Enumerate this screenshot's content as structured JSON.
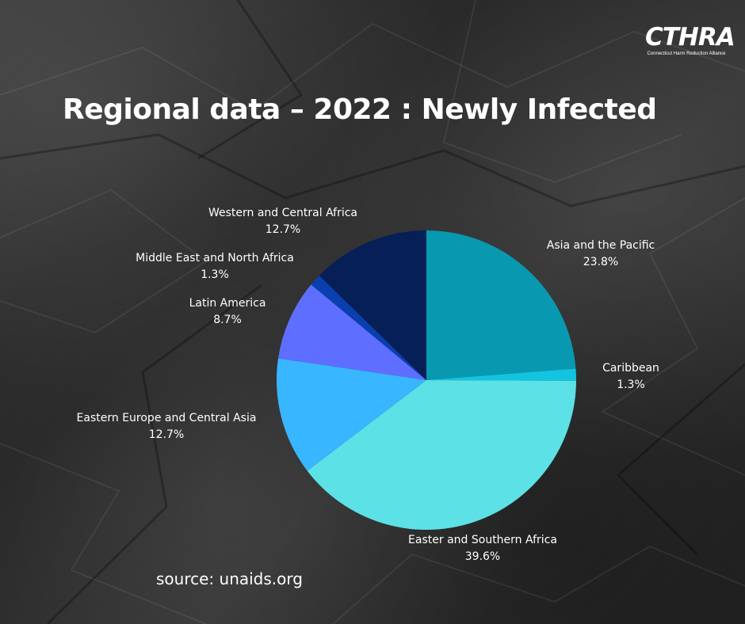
{
  "logo": {
    "word": "CTHRA",
    "tagline": "Connecticut Harm Reduction Alliance"
  },
  "title": "Regional data – 2022 : Newly Infected",
  "source": "source: unaids.org",
  "chart_data": {
    "type": "pie",
    "title": "Regional data – 2022 : Newly Infected",
    "start_angle_deg": 0,
    "direction": "clockwise",
    "slices": [
      {
        "label": "Asia and the Pacific",
        "value": 23.8,
        "value_label": "23.8%",
        "color": "#0899B1"
      },
      {
        "label": "Caribbean",
        "value": 1.3,
        "value_label": "1.3%",
        "color": "#12C4E0"
      },
      {
        "label": "Easter and Southern Africa",
        "value": 39.6,
        "value_label": "39.6%",
        "color": "#5CE1E6"
      },
      {
        "label": "Eastern Europe and Central Asia",
        "value": 12.7,
        "value_label": "12.7%",
        "color": "#38B6FF"
      },
      {
        "label": "Latin America",
        "value": 8.7,
        "value_label": "8.7%",
        "color": "#5E6FFF"
      },
      {
        "label": "Middle East and North Africa",
        "value": 1.3,
        "value_label": "1.3%",
        "color": "#0A3FB0"
      },
      {
        "label": "Western and Central Africa",
        "value": 12.7,
        "value_label": "12.7%",
        "color": "#061F57"
      }
    ]
  }
}
